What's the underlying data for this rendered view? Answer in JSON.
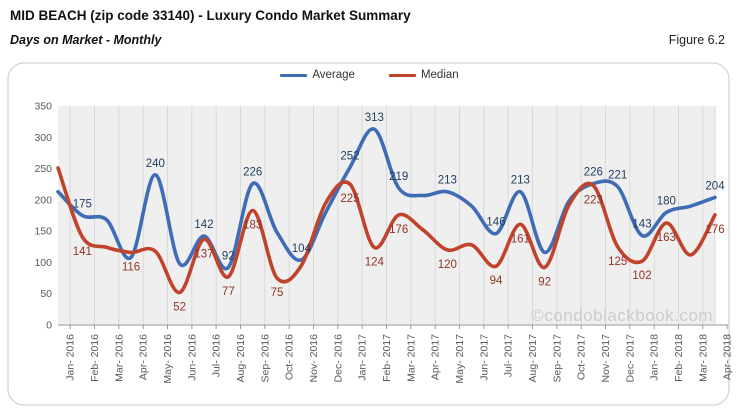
{
  "header": {
    "title": "MID BEACH (zip code 33140) - Luxury Condo Market Summary",
    "subtitle": "Days on Market - Monthly",
    "figure_label": "Figure 6.2"
  },
  "watermark": "©condoblackbook.com",
  "colors": {
    "average_line": "#3E6CB5",
    "median_line": "#C0432C",
    "average_label_text": "#1F3C5F",
    "median_label_text": "#8E3527",
    "axis_text": "#595959",
    "gridline": "#d9d9d9",
    "plot_background": "#efefef",
    "box_border": "#d4d4d4",
    "watermark_text": "#cccccc"
  },
  "chart_data": {
    "type": "line",
    "title": "Days on Market - Monthly",
    "legend_position": "top-center",
    "grid": "vertical-only",
    "ylim": [
      0,
      350
    ],
    "yticks": [
      0,
      50,
      100,
      150,
      200,
      250,
      300,
      350
    ],
    "categories": [
      "Jan- 2016",
      "Feb- 2016",
      "Mar- 2016",
      "Apr- 2016",
      "May- 2016",
      "Jun- 2016",
      "Jul- 2016",
      "Aug- 2016",
      "Sep- 2016",
      "Oct- 2016",
      "Nov- 2016",
      "Dec- 2016",
      "Jan- 2017",
      "Feb- 2017",
      "Mar- 2017",
      "Apr- 2017",
      "May- 2017",
      "Jun- 2017",
      "Jul- 2017",
      "Aug- 2017",
      "Sep- 2017",
      "Oct- 2017",
      "Nov- 2017",
      "Dec- 2017",
      "Jan- 2018",
      "Feb- 2018",
      "Mar- 2018",
      "Apr- 2018"
    ],
    "series": [
      {
        "name": "Average",
        "values": [
          213,
          175,
          168,
          108,
          240,
          98,
          142,
          92,
          226,
          148,
          104,
          180,
          252,
          313,
          219,
          207,
          213,
          190,
          146,
          213,
          116,
          198,
          226,
          221,
          143,
          180,
          190,
          204
        ],
        "point_labels": [
          null,
          175,
          null,
          null,
          240,
          null,
          142,
          92,
          226,
          null,
          104,
          null,
          252,
          313,
          219,
          null,
          213,
          null,
          146,
          213,
          null,
          null,
          226,
          221,
          143,
          180,
          null,
          204
        ]
      },
      {
        "name": "Median",
        "values": [
          251,
          141,
          124,
          116,
          118,
          52,
          137,
          77,
          183,
          75,
          95,
          195,
          225,
          124,
          176,
          152,
          120,
          128,
          94,
          161,
          92,
          192,
          223,
          125,
          102,
          163,
          112,
          176
        ],
        "point_labels": [
          null,
          141,
          null,
          116,
          null,
          52,
          137,
          77,
          183,
          75,
          null,
          null,
          225,
          124,
          176,
          null,
          120,
          null,
          94,
          161,
          92,
          null,
          223,
          125,
          102,
          163,
          null,
          176
        ]
      }
    ]
  }
}
